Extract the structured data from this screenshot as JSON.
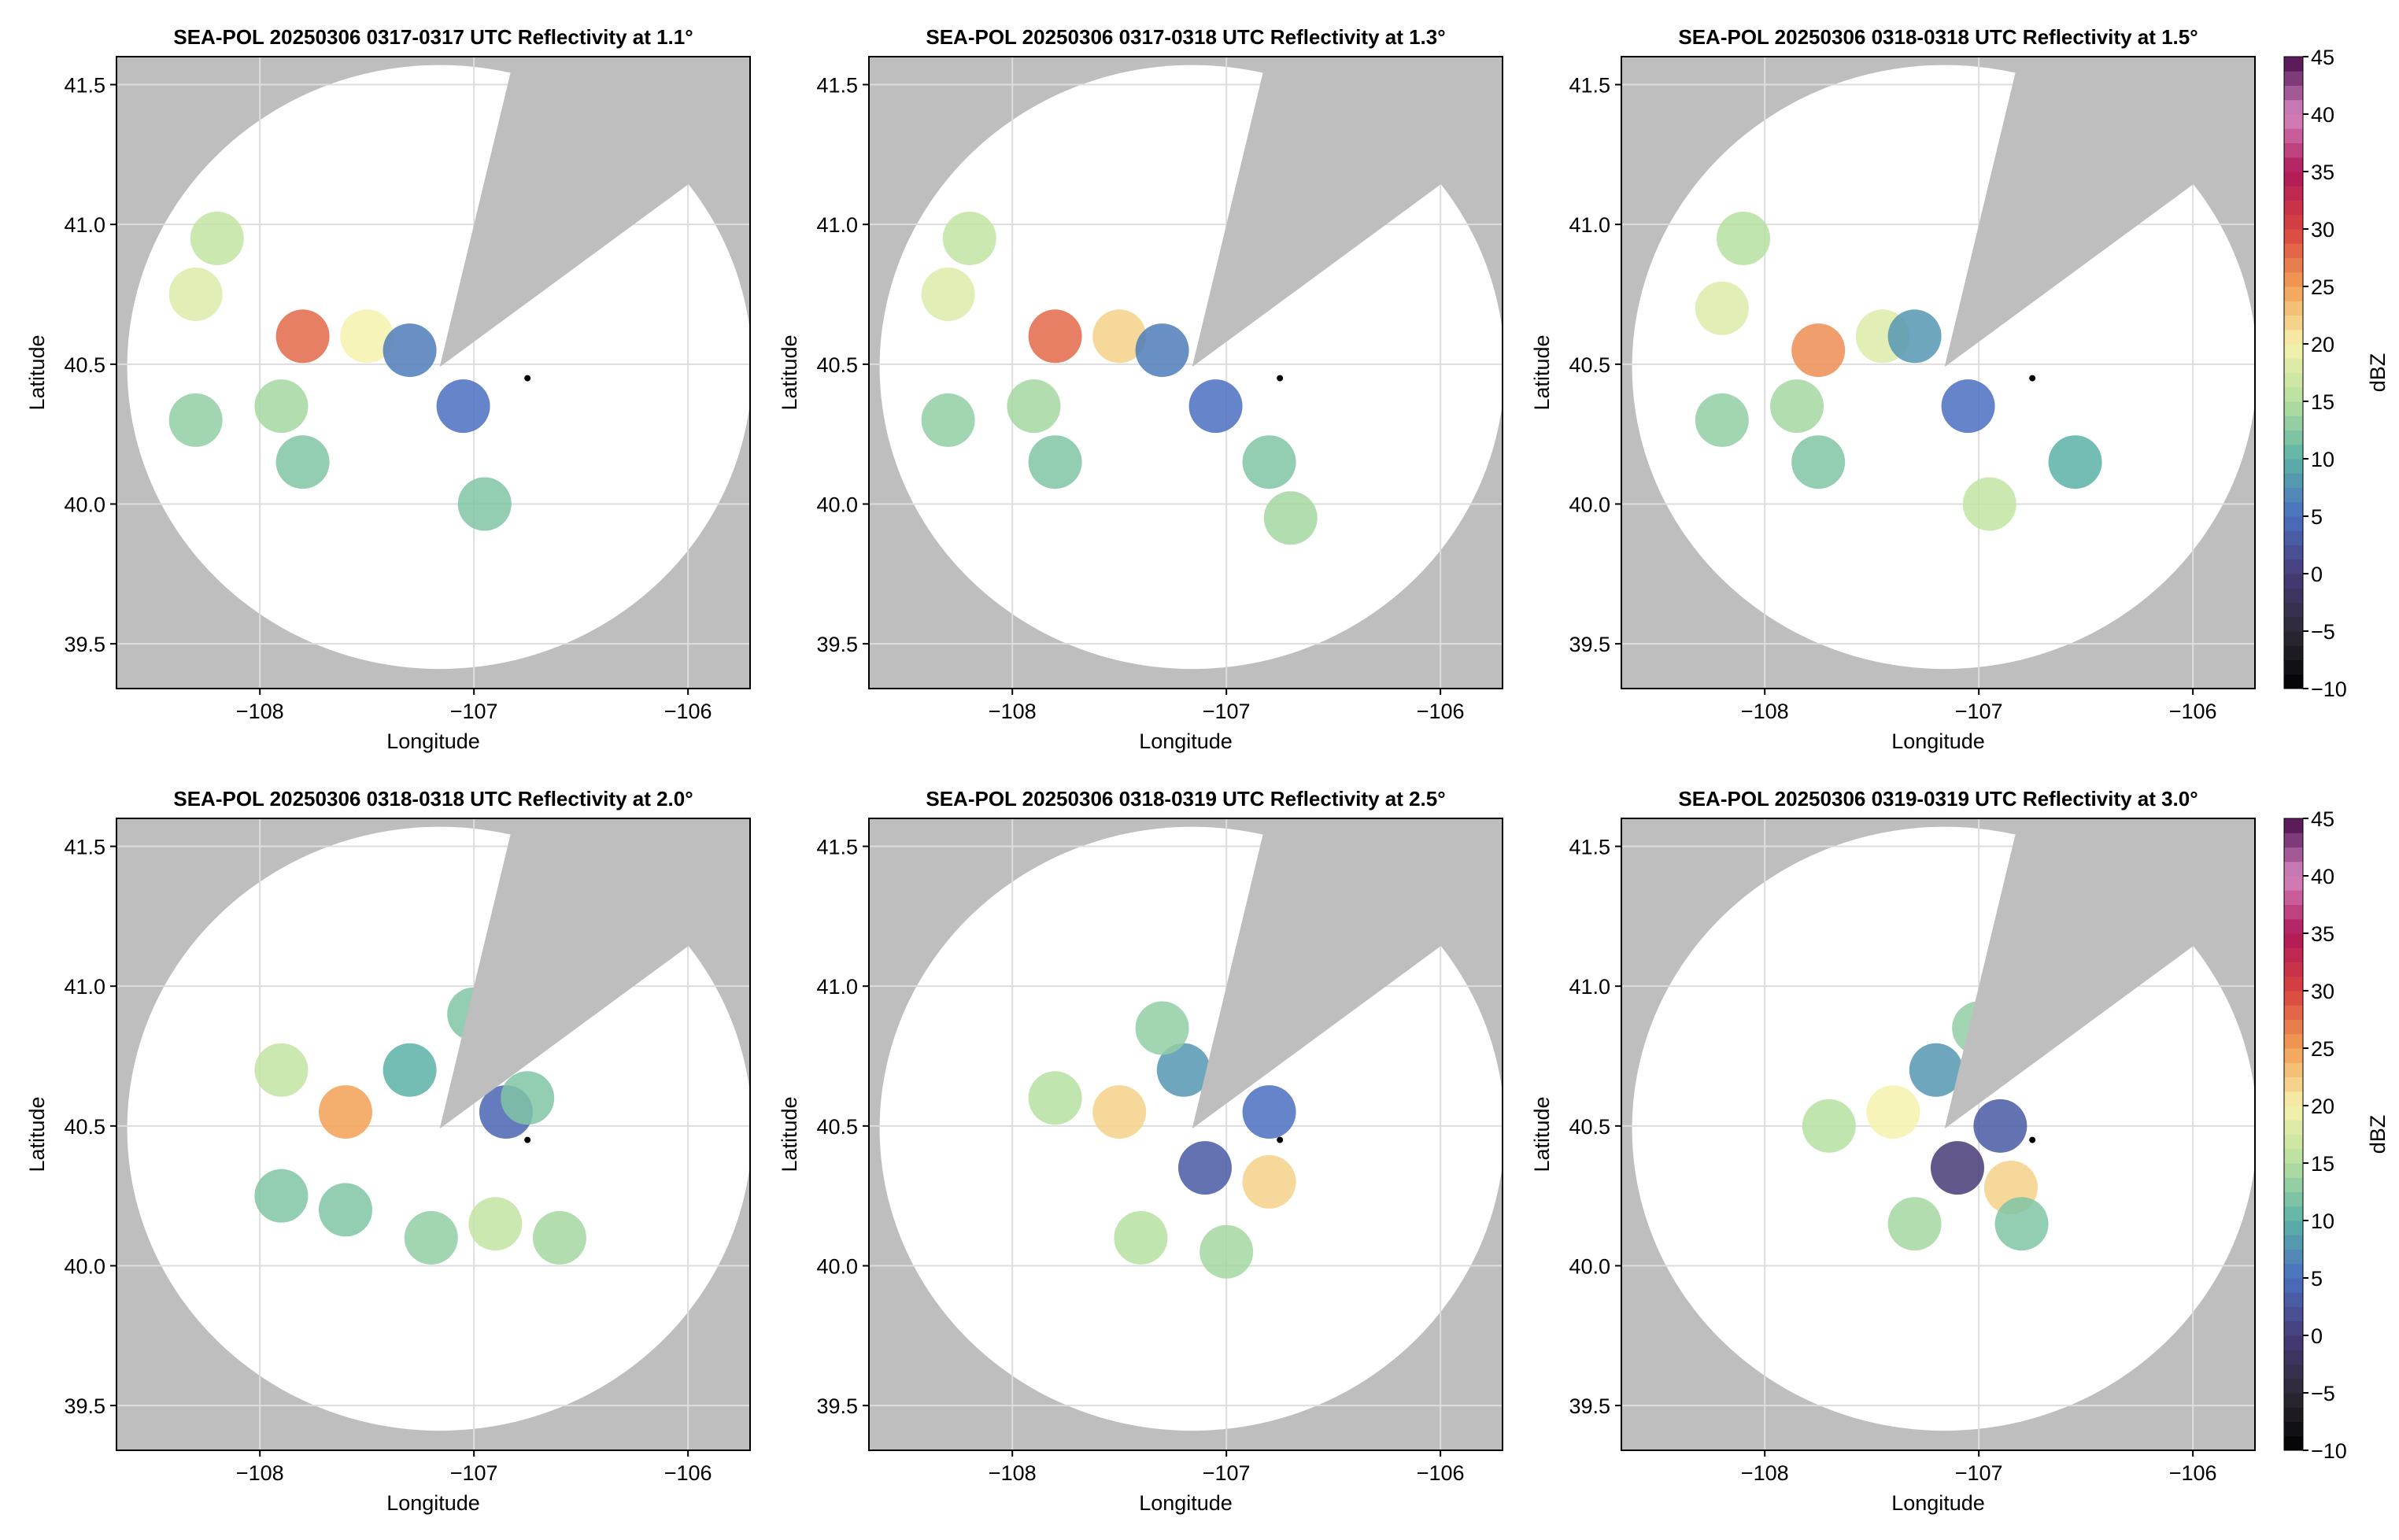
{
  "chart_data": [
    {
      "type": "scatter",
      "title": "SEA-POL 20250306 0317-0317 UTC Reflectivity at 1.1°",
      "xlabel": "Longitude",
      "ylabel": "Latitude",
      "xlim": [
        -108.67,
        -105.71
      ],
      "ylim": [
        39.34,
        41.6
      ],
      "xticks": [
        {
          "value": -108,
          "label": "−108"
        },
        {
          "value": -107,
          "label": "−107"
        },
        {
          "value": -106,
          "label": "−106"
        }
      ],
      "yticks": [
        39.5,
        {
          "value": 40,
          "label": "40.0"
        },
        40.5,
        {
          "value": 41,
          "label": "41.0"
        },
        41.5
      ],
      "grid": true,
      "x": [
        -107.8,
        -108.3,
        -107.5,
        -108.2,
        -107.9,
        -108.3,
        -107.8,
        -107.05,
        -106.95,
        -107.3
      ],
      "y": [
        40.6,
        40.75,
        40.6,
        40.95,
        40.35,
        40.3,
        40.15,
        40.35,
        40.0,
        40.55
      ],
      "values": [
        28,
        18,
        20,
        16,
        14,
        13,
        12,
        5,
        12,
        6
      ]
    },
    {
      "type": "scatter",
      "title": "SEA-POL 20250306 0317-0318 UTC Reflectivity at 1.3°",
      "xlabel": "Longitude",
      "ylabel": "Latitude",
      "xlim": [
        -108.67,
        -105.71
      ],
      "ylim": [
        39.34,
        41.6
      ],
      "xticks": [
        {
          "value": -108,
          "label": "−108"
        },
        {
          "value": -107,
          "label": "−107"
        },
        {
          "value": -106,
          "label": "−106"
        }
      ],
      "yticks": [
        39.5,
        {
          "value": 40,
          "label": "40.0"
        },
        40.5,
        {
          "value": 41,
          "label": "41.0"
        },
        41.5
      ],
      "grid": true,
      "x": [
        -107.8,
        -108.3,
        -107.5,
        -108.2,
        -107.9,
        -108.3,
        -107.8,
        -107.05,
        -106.7,
        -106.8,
        -107.3
      ],
      "y": [
        40.6,
        40.75,
        40.6,
        40.95,
        40.35,
        40.3,
        40.15,
        40.35,
        39.95,
        40.15,
        40.55
      ],
      "values": [
        28,
        18,
        22,
        16,
        14,
        13,
        12,
        5,
        14,
        12,
        6
      ]
    },
    {
      "type": "scatter",
      "title": "SEA-POL 20250306 0318-0318 UTC Reflectivity at 1.5°",
      "xlabel": "Longitude",
      "ylabel": "Latitude",
      "xlim": [
        -108.67,
        -105.71
      ],
      "ylim": [
        39.34,
        41.6
      ],
      "xticks": [
        {
          "value": -108,
          "label": "−108"
        },
        {
          "value": -107,
          "label": "−107"
        },
        {
          "value": -106,
          "label": "−106"
        }
      ],
      "yticks": [
        39.5,
        {
          "value": 40,
          "label": "40.0"
        },
        40.5,
        {
          "value": 41,
          "label": "41.0"
        },
        41.5
      ],
      "grid": true,
      "x": [
        -107.75,
        -108.2,
        -107.45,
        -108.1,
        -107.85,
        -108.2,
        -107.75,
        -107.05,
        -106.95,
        -106.55,
        -107.3
      ],
      "y": [
        40.55,
        40.7,
        40.6,
        40.95,
        40.35,
        40.3,
        40.15,
        40.35,
        40.0,
        40.15,
        40.6
      ],
      "values": [
        26,
        18,
        18,
        15,
        14,
        13,
        12,
        5,
        16,
        10,
        8
      ],
      "colorbar": {
        "label": "dBZ",
        "lim": [
          -10,
          45
        ],
        "ticks": [
          {
            "value": -10,
            "label": "−10"
          },
          {
            "value": -5,
            "label": "−5"
          },
          0,
          5,
          10,
          15,
          20,
          25,
          30,
          35,
          40,
          45
        ]
      }
    },
    {
      "type": "scatter",
      "title": "SEA-POL 20250306 0318-0318 UTC Reflectivity at 2.0°",
      "xlabel": "Longitude",
      "ylabel": "Latitude",
      "xlim": [
        -108.67,
        -105.71
      ],
      "ylim": [
        39.34,
        41.6
      ],
      "xticks": [
        {
          "value": -108,
          "label": "−108"
        },
        {
          "value": -107,
          "label": "−107"
        },
        {
          "value": -106,
          "label": "−106"
        }
      ],
      "yticks": [
        39.5,
        {
          "value": 40,
          "label": "40.0"
        },
        40.5,
        {
          "value": 41,
          "label": "41.0"
        },
        41.5
      ],
      "grid": true,
      "x": [
        -107.6,
        -107.9,
        -107.3,
        -106.85,
        -106.75,
        -107.6,
        -107.2,
        -106.9,
        -106.6,
        -107.0,
        -107.9
      ],
      "y": [
        40.55,
        40.7,
        40.7,
        40.55,
        40.6,
        40.2,
        40.1,
        40.15,
        40.1,
        40.9,
        40.25
      ],
      "values": [
        25,
        16,
        10,
        4,
        12,
        12,
        13,
        16,
        14,
        12,
        12
      ]
    },
    {
      "type": "scatter",
      "title": "SEA-POL 20250306 0318-0319 UTC Reflectivity at 2.5°",
      "xlabel": "Longitude",
      "ylabel": "Latitude",
      "xlim": [
        -108.67,
        -105.71
      ],
      "ylim": [
        39.34,
        41.6
      ],
      "xticks": [
        {
          "value": -108,
          "label": "−108"
        },
        {
          "value": -107,
          "label": "−107"
        },
        {
          "value": -106,
          "label": "−106"
        }
      ],
      "yticks": [
        39.5,
        {
          "value": 40,
          "label": "40.0"
        },
        40.5,
        {
          "value": 41,
          "label": "41.0"
        },
        41.5
      ],
      "grid": true,
      "x": [
        -107.5,
        -107.8,
        -107.2,
        -106.8,
        -106.8,
        -107.1,
        -107.4,
        -107.0,
        -107.3
      ],
      "y": [
        40.55,
        40.6,
        40.7,
        40.55,
        40.3,
        40.35,
        40.1,
        40.05,
        40.85
      ],
      "values": [
        22,
        15,
        8,
        5,
        22,
        3,
        15,
        14,
        13
      ]
    },
    {
      "type": "scatter",
      "title": "SEA-POL 20250306 0319-0319 UTC Reflectivity at 3.0°",
      "xlabel": "Longitude",
      "ylabel": "Latitude",
      "xlim": [
        -108.67,
        -105.71
      ],
      "ylim": [
        39.34,
        41.6
      ],
      "xticks": [
        {
          "value": -108,
          "label": "−108"
        },
        {
          "value": -107,
          "label": "−107"
        },
        {
          "value": -106,
          "label": "−106"
        }
      ],
      "yticks": [
        39.5,
        {
          "value": 40,
          "label": "40.0"
        },
        40.5,
        {
          "value": 41,
          "label": "41.0"
        },
        41.5
      ],
      "grid": true,
      "x": [
        -107.4,
        -107.7,
        -107.2,
        -106.9,
        -106.85,
        -107.1,
        -107.3,
        -106.8,
        -107.0
      ],
      "y": [
        40.55,
        40.5,
        40.7,
        40.5,
        40.28,
        40.35,
        40.15,
        40.15,
        40.85
      ],
      "values": [
        20,
        15,
        8,
        3,
        22,
        0,
        14,
        12,
        13
      ],
      "colorbar": {
        "label": "dBZ",
        "lim": [
          -10,
          45
        ],
        "ticks": [
          {
            "value": -10,
            "label": "−10"
          },
          {
            "value": -5,
            "label": "−5"
          },
          0,
          5,
          10,
          15,
          20,
          25,
          30,
          35,
          40,
          45
        ]
      }
    }
  ],
  "colormap": [
    "#000000",
    "#2e2a35",
    "#463b78",
    "#4a6fbf",
    "#5cb2a7",
    "#b6e0a0",
    "#f6f2ad",
    "#f2a055",
    "#d8433f",
    "#b0185a",
    "#d687c0",
    "#4a0d4e"
  ]
}
